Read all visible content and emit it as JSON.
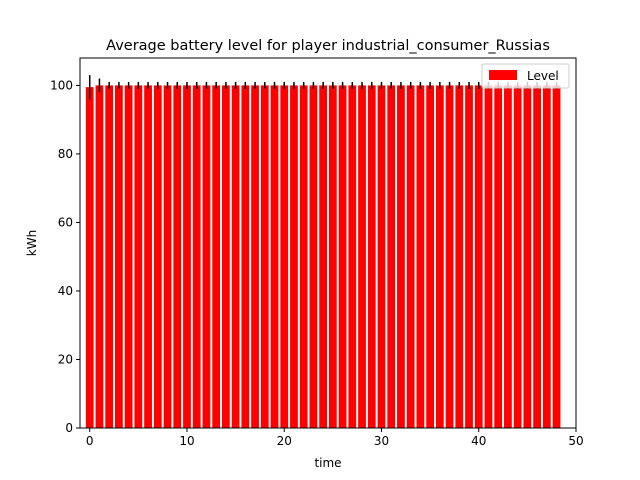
{
  "chart_data": {
    "type": "bar",
    "title": "Average battery level for player industrial_consumer_Russias",
    "xlabel": "time",
    "ylabel": "kWh",
    "xlim": [
      -1,
      50
    ],
    "ylim": [
      0,
      108
    ],
    "x_ticks": [
      0,
      10,
      20,
      30,
      40,
      50
    ],
    "y_ticks": [
      0,
      20,
      40,
      60,
      80,
      100
    ],
    "grid": false,
    "legend_position": "top-right",
    "bar_color": "#ff0000",
    "error_color": "#000000",
    "series": [
      {
        "name": "Level",
        "x": [
          0,
          1,
          2,
          3,
          4,
          5,
          6,
          7,
          8,
          9,
          10,
          11,
          12,
          13,
          14,
          15,
          16,
          17,
          18,
          19,
          20,
          21,
          22,
          23,
          24,
          25,
          26,
          27,
          28,
          29,
          30,
          31,
          32,
          33,
          34,
          35,
          36,
          37,
          38,
          39,
          40,
          41,
          42,
          43,
          44,
          45,
          46,
          47,
          48
        ],
        "values": [
          99.5,
          100,
          100,
          100,
          100,
          100,
          100,
          100,
          100,
          100,
          100,
          100,
          100,
          100,
          100,
          100,
          100,
          100,
          100,
          100,
          100,
          100,
          100,
          100,
          100,
          100,
          100,
          100,
          100,
          100,
          100,
          100,
          100,
          100,
          100,
          100,
          100,
          100,
          100,
          100,
          100,
          100,
          100,
          100,
          100,
          100,
          100,
          100,
          100
        ],
        "errors": [
          3.5,
          2,
          1,
          1,
          1,
          1,
          1,
          1,
          1,
          1,
          1,
          1,
          1,
          1,
          1,
          1,
          1,
          1,
          1,
          1,
          1,
          1,
          1,
          1,
          1,
          1,
          1,
          1,
          1,
          1,
          1,
          1,
          1,
          1,
          1,
          1,
          1,
          1,
          1,
          1,
          1,
          1,
          1,
          1,
          1,
          1,
          1,
          1,
          1
        ]
      }
    ]
  }
}
